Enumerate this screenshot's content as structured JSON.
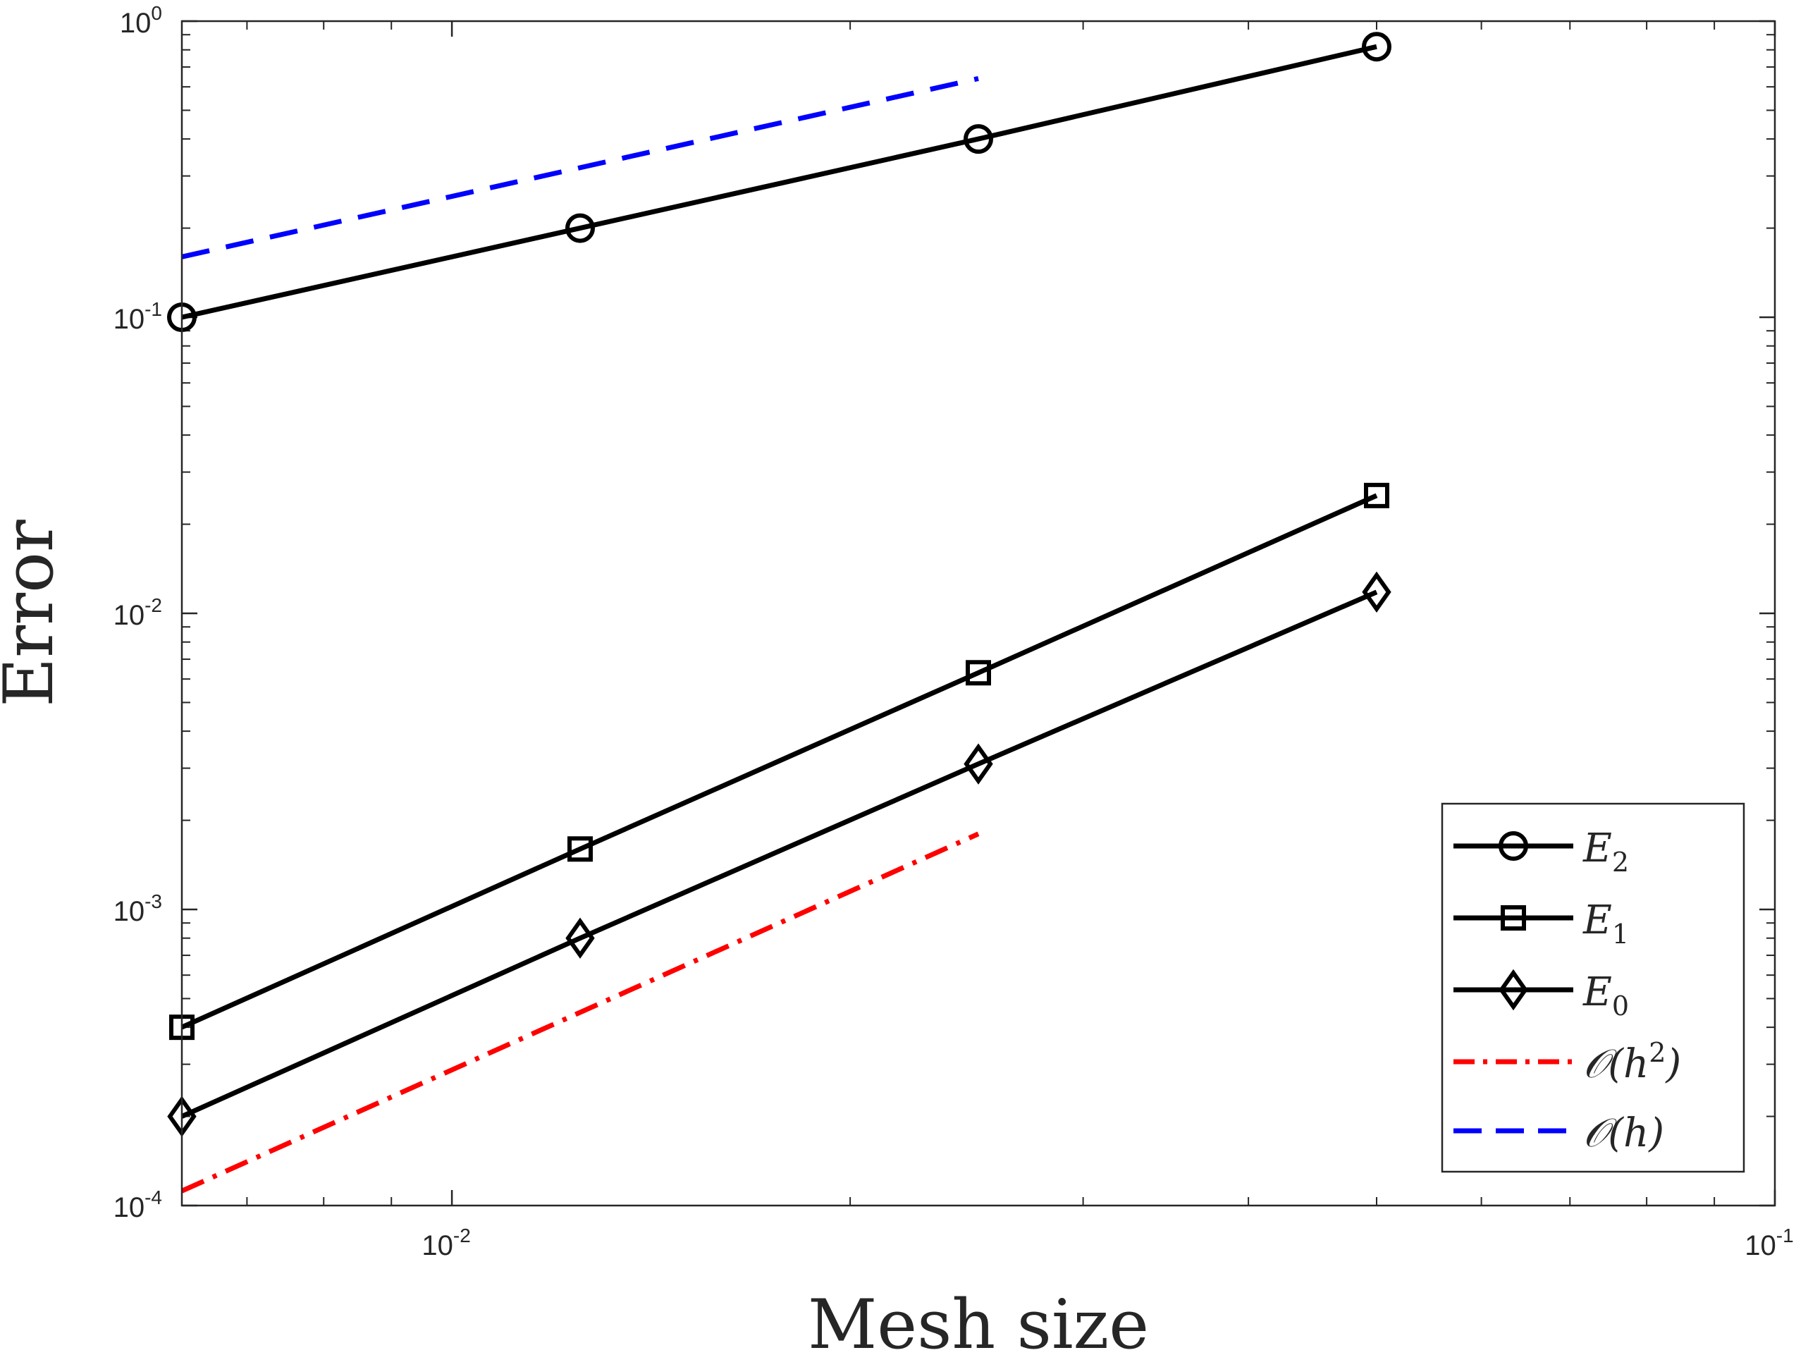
{
  "chart_data": {
    "type": "line",
    "scale": {
      "x": "log",
      "y": "log"
    },
    "xlabel": "Mesh size",
    "ylabel": "Error",
    "xlim": [
      0.00625,
      0.1
    ],
    "ylim": [
      0.0001,
      1
    ],
    "grid": false,
    "legend_position": "bottom-right",
    "x_ticks": [
      {
        "value": 0.01,
        "base": "10",
        "exp": "-2"
      },
      {
        "value": 0.1,
        "base": "10",
        "exp": "-1"
      }
    ],
    "y_ticks": [
      {
        "value": 0.0001,
        "base": "10",
        "exp": "-4"
      },
      {
        "value": 0.001,
        "base": "10",
        "exp": "-3"
      },
      {
        "value": 0.01,
        "base": "10",
        "exp": "-2"
      },
      {
        "value": 0.1,
        "base": "10",
        "exp": "-1"
      },
      {
        "value": 1,
        "base": "10",
        "exp": "0"
      }
    ],
    "series": [
      {
        "name": "E2",
        "base": "E",
        "sub": "2",
        "marker": "circle",
        "color": "#000000",
        "dash": "solid",
        "x": [
          0.00625,
          0.0125,
          0.025,
          0.05
        ],
        "y": [
          0.1,
          0.2,
          0.4,
          0.82
        ]
      },
      {
        "name": "E1",
        "base": "E",
        "sub": "1",
        "marker": "square",
        "color": "#000000",
        "dash": "solid",
        "x": [
          0.00625,
          0.0125,
          0.025,
          0.05
        ],
        "y": [
          0.0004,
          0.0016,
          0.0063,
          0.025
        ]
      },
      {
        "name": "E0",
        "base": "E",
        "sub": "0",
        "marker": "diamond",
        "color": "#000000",
        "dash": "solid",
        "x": [
          0.00625,
          0.0125,
          0.025,
          0.05
        ],
        "y": [
          0.0002,
          0.0008,
          0.0031,
          0.0118
        ]
      },
      {
        "name": "O(h^2)",
        "label": "𝒪(h",
        "sup": "2",
        "tail": ")",
        "marker": "none",
        "color": "#ff0000",
        "dash": "dashdot",
        "x": [
          0.00625,
          0.025
        ],
        "y": [
          0.000112,
          0.0018
        ]
      },
      {
        "name": "O(h)",
        "label": "𝒪(h)",
        "marker": "none",
        "color": "#0000ff",
        "dash": "dashed",
        "x": [
          0.00625,
          0.025
        ],
        "y": [
          0.16,
          0.64
        ]
      }
    ]
  }
}
